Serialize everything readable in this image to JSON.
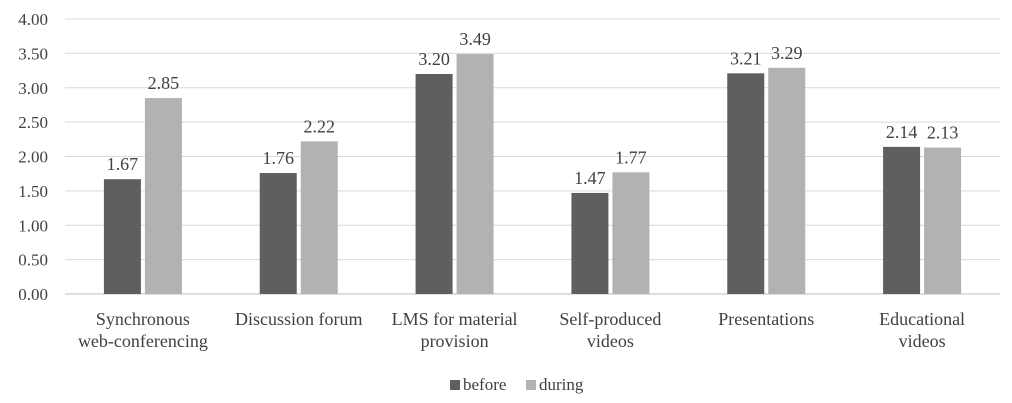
{
  "chart_data": {
    "type": "bar",
    "categories": [
      [
        "Synchronous",
        "web-conferencing"
      ],
      [
        "Discussion forum"
      ],
      [
        "LMS for material",
        "provision"
      ],
      [
        "Self-produced",
        "videos"
      ],
      [
        "Presentations"
      ],
      [
        "Educational",
        "videos"
      ]
    ],
    "series": [
      {
        "name": "before",
        "color": "#5f5f5f",
        "values": [
          1.67,
          1.76,
          3.2,
          1.47,
          3.21,
          2.14
        ]
      },
      {
        "name": "during",
        "color": "#b2b2b2",
        "values": [
          2.85,
          2.22,
          3.49,
          1.77,
          3.29,
          2.13
        ]
      }
    ],
    "ylim": [
      0,
      4
    ],
    "yticks": [
      "0.00",
      "0.50",
      "1.00",
      "1.50",
      "2.00",
      "2.50",
      "3.00",
      "3.50",
      "4.00"
    ],
    "grid": true,
    "legend_position": "bottom",
    "title": "",
    "xlabel": "",
    "ylabel": ""
  }
}
